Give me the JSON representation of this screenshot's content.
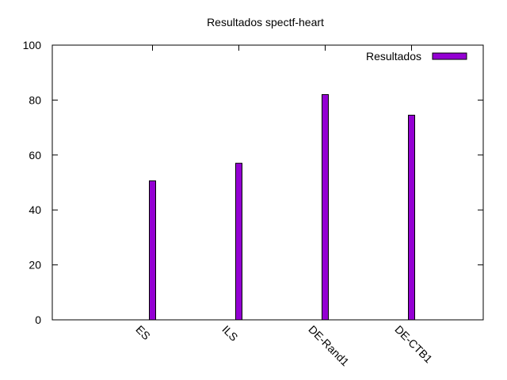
{
  "chart_data": {
    "type": "bar",
    "title": "Resultados spectf-heart",
    "xlabel": "",
    "ylabel": "",
    "categories": [
      "ES",
      "ILS",
      "DE-Rand1",
      "DE-CTB1"
    ],
    "series": [
      {
        "name": "Resultados",
        "values": [
          50.6,
          57.0,
          82.0,
          74.5
        ],
        "color": "#9400d3"
      }
    ],
    "ylim": [
      0,
      100
    ],
    "yticks": [
      0,
      20,
      40,
      60,
      80,
      100
    ],
    "ytick_labels": [
      "0",
      "20",
      "40",
      "60",
      "80",
      "100"
    ],
    "grid": false,
    "legend_position": "top-right",
    "border_color": "#000000"
  }
}
